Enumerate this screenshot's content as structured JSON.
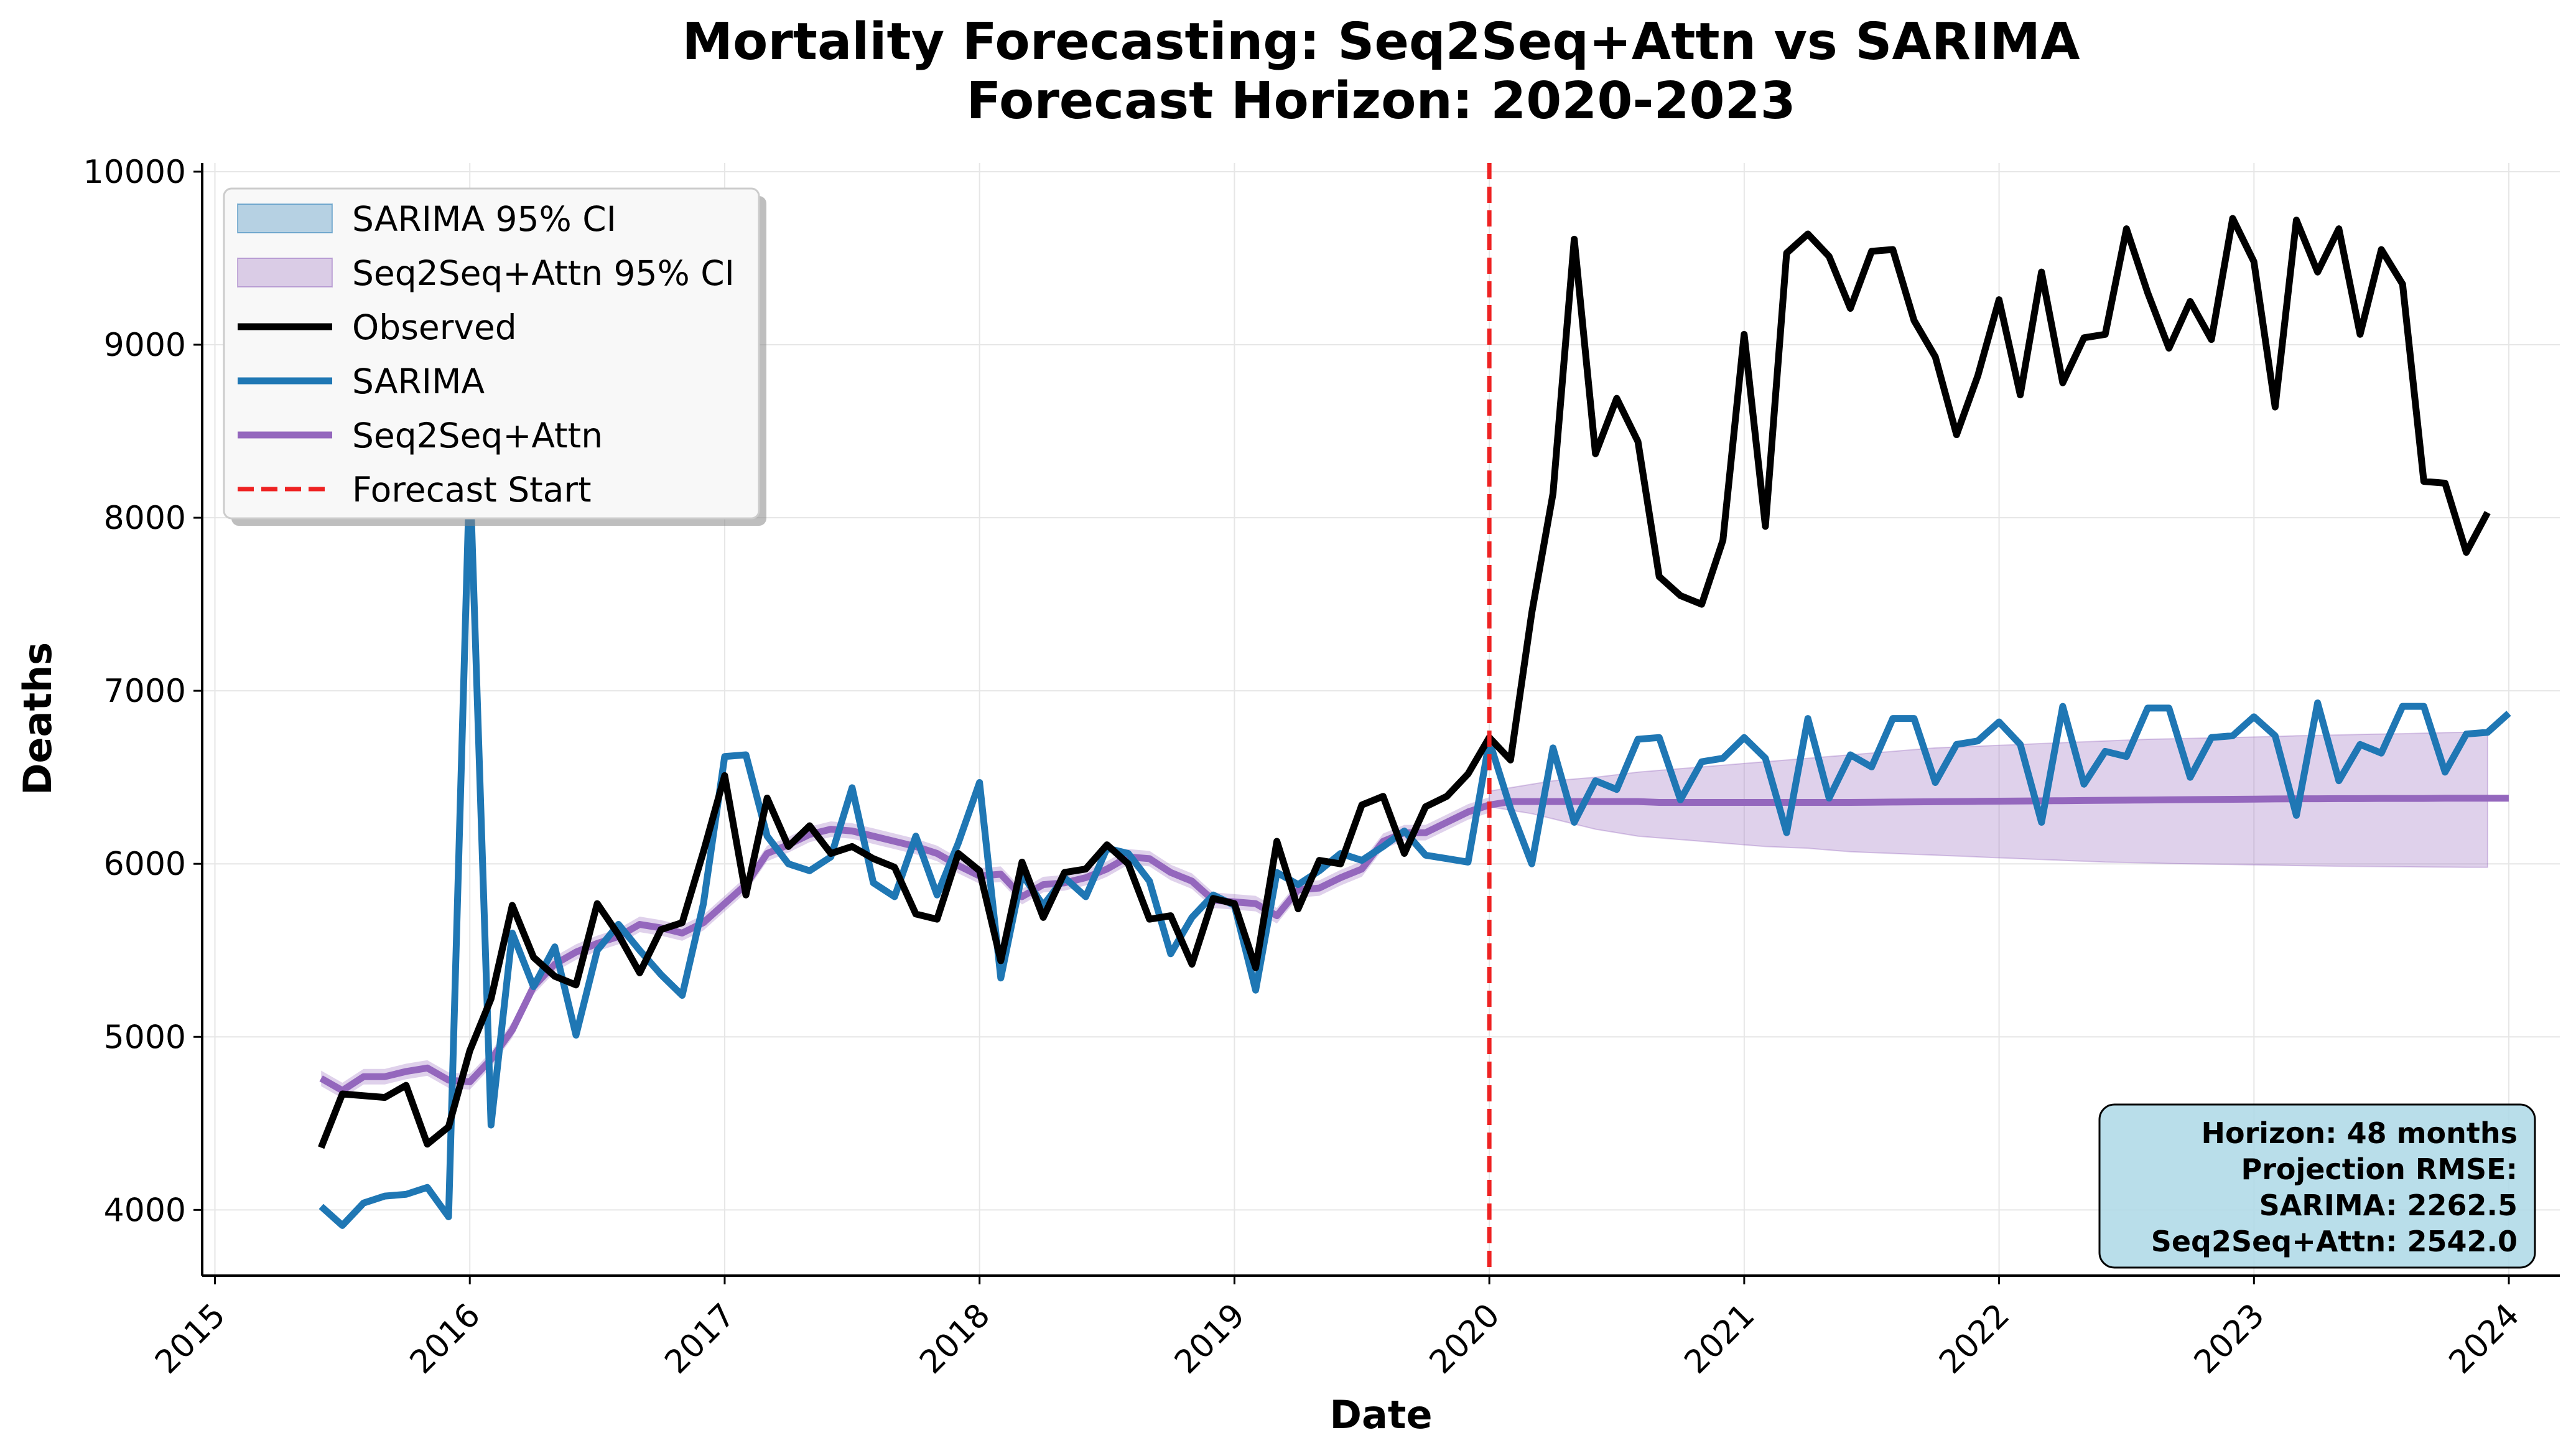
{
  "chart_data": {
    "type": "line",
    "title_line1": "Mortality Forecasting: Seq2Seq+Attn vs SARIMA",
    "title_line2": "Forecast Horizon: 2020-2023",
    "xlabel": "Date",
    "ylabel": "Deaths",
    "xlim": [
      2014.95,
      2024.2
    ],
    "ylim": [
      3620,
      10050
    ],
    "x_ticks": [
      2015,
      2016,
      2017,
      2018,
      2019,
      2020,
      2021,
      2022,
      2023,
      2024
    ],
    "y_ticks": [
      4000,
      5000,
      6000,
      7000,
      8000,
      9000,
      10000
    ],
    "grid": true,
    "forecast_start": 2020,
    "series": [
      {
        "name": "Observed",
        "color": "#000000",
        "x_start": 2015.4167,
        "x_step": 0.08333,
        "values": [
          4360,
          4670,
          4660,
          4650,
          4720,
          4380,
          4480,
          4920,
          5220,
          5760,
          5460,
          5350,
          5300,
          5770,
          5590,
          5370,
          5620,
          5660,
          6070,
          6510,
          5820,
          6380,
          6100,
          6220,
          6060,
          6100,
          6030,
          5980,
          5710,
          5680,
          6060,
          5960,
          5440,
          6010,
          5690,
          5950,
          5970,
          6110,
          6000,
          5680,
          5700,
          5420,
          5800,
          5770,
          5400,
          6130,
          5740,
          6020,
          6000,
          6340,
          6390,
          6060,
          6330,
          6390,
          6520,
          6730,
          6600,
          7450,
          8140,
          9610,
          8370,
          8690,
          8440,
          7660,
          7550,
          7500,
          7870,
          9060,
          7950,
          9530,
          9640,
          9510,
          9210,
          9540,
          9550,
          9140,
          8930,
          8480,
          8820,
          9260,
          8710,
          9420,
          8780,
          9040,
          9060,
          9670,
          9300,
          8980,
          9250,
          9030,
          9730,
          9480,
          8640,
          9720,
          9420,
          9670,
          9060,
          9550,
          9350,
          8210,
          8200,
          7800,
          8030
        ]
      },
      {
        "name": "SARIMA",
        "color": "#1f77b4",
        "x_start": 2015.4167,
        "x_step": 0.08333,
        "values": [
          4020,
          3910,
          4040,
          4080,
          4090,
          4130,
          3960,
          8290,
          4490,
          5600,
          5290,
          5520,
          5010,
          5500,
          5650,
          5500,
          5360,
          5240,
          5770,
          6620,
          6630,
          6160,
          6000,
          5960,
          6040,
          6440,
          5890,
          5810,
          6160,
          5820,
          6120,
          6470,
          5340,
          5940,
          5760,
          5920,
          5810,
          6090,
          6060,
          5900,
          5480,
          5690,
          5820,
          5760,
          5270,
          5950,
          5880,
          5960,
          6060,
          6020,
          6100,
          6190,
          6050,
          6030,
          6010,
          6710,
          6320,
          6000,
          6670,
          6240,
          6480,
          6430,
          6720,
          6730,
          6370,
          6590,
          6610,
          6730,
          6610,
          6180,
          6840,
          6380,
          6630,
          6560,
          6840,
          6840,
          6470,
          6690,
          6710,
          6820,
          6690,
          6240,
          6910,
          6460,
          6650,
          6620,
          6900,
          6900,
          6500,
          6730,
          6740,
          6850,
          6740,
          6280,
          6930,
          6480,
          6690,
          6640,
          6910,
          6910,
          6530,
          6750,
          6760,
          6870
        ]
      },
      {
        "name": "Seq2Seq+Attn",
        "color": "#9467bd",
        "x_start": 2015.4167,
        "x_step": 0.08333,
        "values": [
          4760,
          4690,
          4770,
          4770,
          4800,
          4820,
          4750,
          4740,
          4870,
          5040,
          5290,
          5420,
          5490,
          5540,
          5580,
          5650,
          5630,
          5600,
          5660,
          5770,
          5880,
          6060,
          6110,
          6170,
          6200,
          6190,
          6160,
          6130,
          6100,
          6060,
          5990,
          5930,
          5940,
          5810,
          5880,
          5890,
          5920,
          5970,
          6040,
          6030,
          5950,
          5900,
          5790,
          5780,
          5770,
          5700,
          5850,
          5860,
          5920,
          5970,
          6130,
          6180,
          6180,
          6240,
          6300,
          6340,
          6360,
          6360,
          6360,
          6360,
          6360,
          6360,
          6360,
          6355,
          6355,
          6355,
          6355,
          6355,
          6355,
          6355,
          6355,
          6355,
          6355,
          6356,
          6357,
          6358,
          6359,
          6360,
          6361,
          6362,
          6363,
          6364,
          6365,
          6366,
          6367,
          6368,
          6369,
          6370,
          6371,
          6372,
          6373,
          6374,
          6375,
          6376,
          6376,
          6377,
          6377,
          6378,
          6378,
          6378,
          6379,
          6379,
          6379,
          6379
        ]
      }
    ],
    "confidence_intervals": [
      {
        "name": "SARIMA 95% CI",
        "color": "#1f77b4",
        "values": []
      },
      {
        "name": "Seq2Seq+Attn 95% CI",
        "color": "#9467bd",
        "x_start": 2020.0,
        "x_step": 0.08333,
        "lower": [
          6330,
          6310,
          6290,
          6260,
          6230,
          6200,
          6180,
          6160,
          6150,
          6140,
          6130,
          6120,
          6110,
          6100,
          6095,
          6090,
          6080,
          6070,
          6065,
          6060,
          6055,
          6050,
          6045,
          6040,
          6035,
          6030,
          6025,
          6020,
          6015,
          6010,
          6008,
          6005,
          6002,
          6000,
          5998,
          5996,
          5994,
          5992,
          5990,
          5988,
          5986,
          5985,
          5984,
          5983,
          5982,
          5981,
          5980,
          5980
        ],
        "upper": [
          6420,
          6440,
          6460,
          6480,
          6490,
          6500,
          6515,
          6530,
          6540,
          6550,
          6560,
          6570,
          6580,
          6590,
          6600,
          6610,
          6620,
          6630,
          6640,
          6650,
          6660,
          6670,
          6675,
          6680,
          6685,
          6690,
          6695,
          6700,
          6705,
          6710,
          6715,
          6720,
          6722,
          6725,
          6728,
          6730,
          6733,
          6736,
          6740,
          6742,
          6745,
          6748,
          6750,
          6752,
          6755,
          6758,
          6760,
          6770
        ]
      }
    ],
    "legend": {
      "placement": "upper-left",
      "entries": [
        {
          "label": "SARIMA 95% CI",
          "kind": "patch",
          "color": "#1f77b4"
        },
        {
          "label": "Seq2Seq+Attn 95% CI",
          "kind": "patch",
          "color": "#9467bd"
        },
        {
          "label": "Observed",
          "kind": "line",
          "color": "#000000"
        },
        {
          "label": "SARIMA",
          "kind": "line",
          "color": "#1f77b4"
        },
        {
          "label": "Seq2Seq+Attn",
          "kind": "line",
          "color": "#9467bd"
        },
        {
          "label": "Forecast Start",
          "kind": "dashed",
          "color": "#ee2222"
        }
      ]
    },
    "info_box": {
      "placement": "lower-right",
      "lines": [
        "Horizon: 48 months",
        "Projection RMSE:",
        "SARIMA: 2262.5",
        "Seq2Seq+Attn: 2542.0"
      ]
    }
  }
}
